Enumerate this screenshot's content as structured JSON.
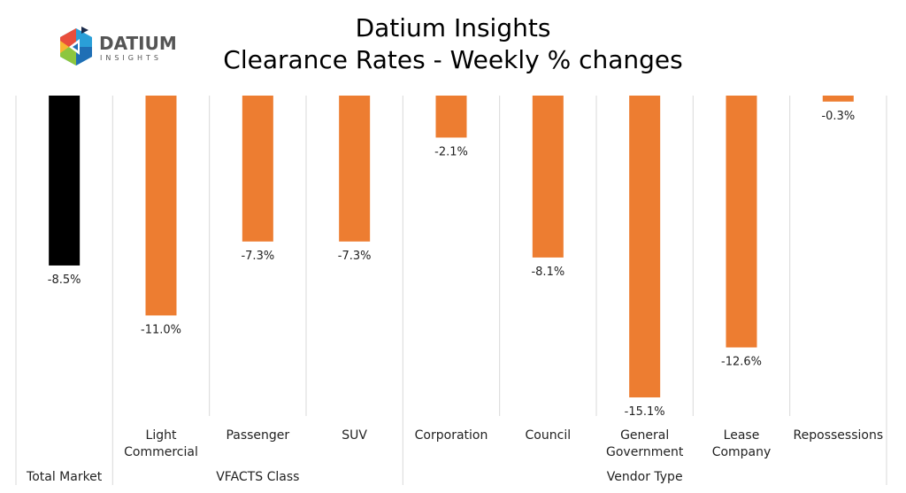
{
  "logo": {
    "text": "DATIUM",
    "subtext": "INSIGHTS"
  },
  "chart_data": {
    "type": "bar",
    "title": "Datium Insights",
    "subtitle": "Clearance Rates - Weekly % changes",
    "categories": [
      "Total Market",
      "Light Commercial",
      "Passenger",
      "SUV",
      "Corporation",
      "Council",
      "General Government",
      "Lease Company",
      "Repossessions"
    ],
    "groups": [
      {
        "label": "Total Market",
        "members": [
          0
        ]
      },
      {
        "label": "VFACTS Class",
        "members": [
          1,
          2,
          3
        ]
      },
      {
        "label": "Vendor Type",
        "members": [
          4,
          5,
          6,
          7,
          8
        ]
      }
    ],
    "values": [
      -8.5,
      -11.0,
      -7.3,
      -7.3,
      -2.1,
      -8.1,
      -15.1,
      -12.6,
      -0.3
    ],
    "data_labels": [
      "-8.5%",
      "-11.0%",
      "-7.3%",
      "-7.3%",
      "-2.1%",
      "-8.1%",
      "-15.1%",
      "-12.6%",
      "-0.3%"
    ],
    "colors": [
      "#000000",
      "#ED7D31",
      "#ED7D31",
      "#ED7D31",
      "#ED7D31",
      "#ED7D31",
      "#ED7D31",
      "#ED7D31",
      "#ED7D31"
    ],
    "ylim": [
      -15.1,
      0
    ],
    "grid": false,
    "legend": "none"
  }
}
